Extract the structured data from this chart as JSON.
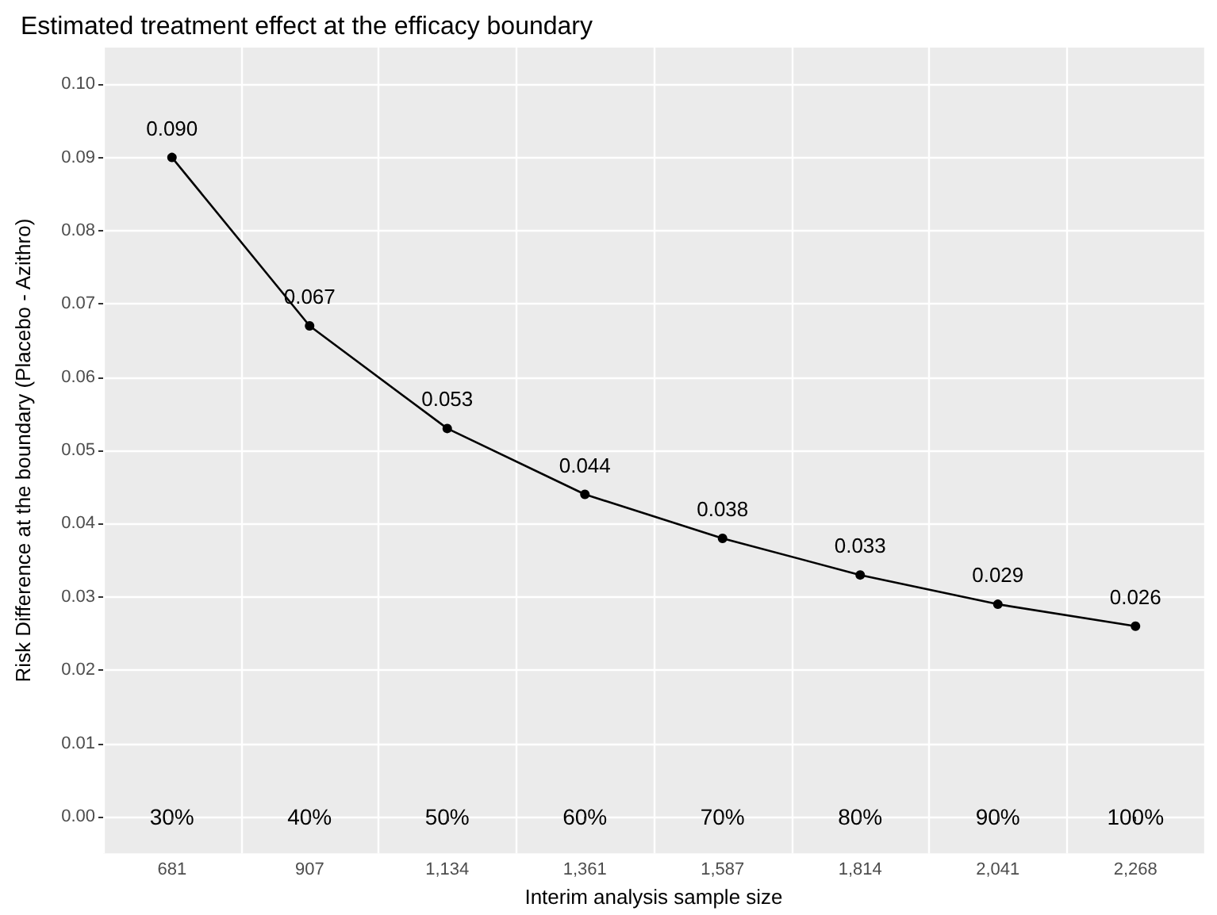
{
  "chart_data": {
    "type": "line",
    "title": "Estimated treatment effect at the efficacy boundary",
    "xlabel": "Interim analysis sample size",
    "ylabel": "Risk Difference at the boundary (Placebo - Azithro)",
    "categories": [
      "681",
      "907",
      "1,134",
      "1,361",
      "1,587",
      "1,814",
      "2,041",
      "2,268"
    ],
    "values": [
      0.09,
      0.067,
      0.053,
      0.044,
      0.038,
      0.033,
      0.029,
      0.026
    ],
    "value_labels": [
      "0.090",
      "0.067",
      "0.053",
      "0.044",
      "0.038",
      "0.033",
      "0.029",
      "0.026"
    ],
    "color": "#000000",
    "marker": "circle",
    "line_style": "solid",
    "grid": true,
    "ylim": [
      -0.005,
      0.105
    ],
    "yticks": [
      "0.00",
      "0.01",
      "0.02",
      "0.03",
      "0.04",
      "0.05",
      "0.06",
      "0.07",
      "0.08",
      "0.09",
      "0.10"
    ],
    "annotations": [
      "30%",
      "40%",
      "50%",
      "60%",
      "70%",
      "80%",
      "90%",
      "100%"
    ]
  }
}
